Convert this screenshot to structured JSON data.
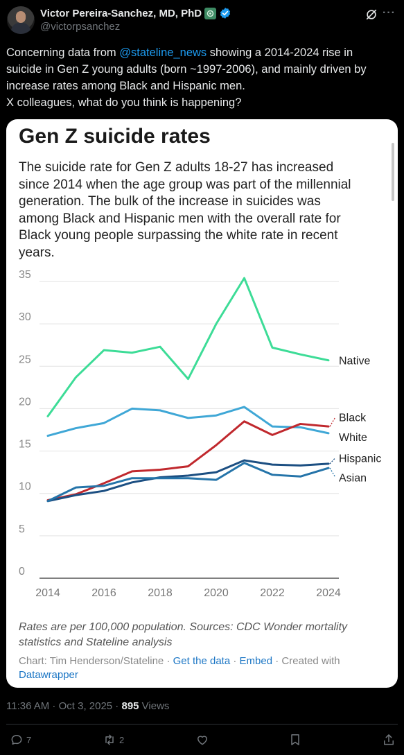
{
  "author": {
    "display_name": "Victor Pereira-Sanchez, MD, PhD",
    "handle": "@victorpsanchez"
  },
  "tweet": {
    "line1_pre": "Concerning data from ",
    "mention": "@stateline_news",
    "line1_post": " showing a 2014-2024 rise in",
    "line2": "suicide in Gen Z young adults (born ~1997-2006), and mainly driven by",
    "line3": "increase rates among Black and Hispanic men.",
    "line4": "X colleagues, what do you think is happening?"
  },
  "card": {
    "title": "Gen Z suicide rates",
    "subtitle_lines": [
      "The suicide rate for Gen Z adults 18-27 has increased",
      "since 2014 when the age group was part of the millennial",
      "generation. The bulk of the increase in suicides was",
      "among Black and Hispanic men with the overall rate for",
      "Black young people surpassing the white rate in recent",
      "years."
    ],
    "footnote_lines": [
      "Rates are per 100,000 population. Sources: CDC Wonder mortality",
      "statistics and Stateline analysis"
    ],
    "credit_prefix": "Chart: Tim Henderson/Stateline",
    "link_get_data": "Get the data",
    "link_embed": "Embed",
    "credit_created": "Created with",
    "link_datawrapper": "Datawrapper"
  },
  "chart_data": {
    "type": "line",
    "title": "Gen Z suicide rates",
    "x": [
      2014,
      2015,
      2016,
      2017,
      2018,
      2019,
      2020,
      2021,
      2022,
      2023,
      2024
    ],
    "x_ticks": [
      "2014",
      "2016",
      "2018",
      "2020",
      "2022",
      "2024"
    ],
    "y_ticks": [
      "0",
      "5",
      "10",
      "15",
      "20",
      "25",
      "30",
      "35"
    ],
    "ylim": [
      0,
      35
    ],
    "grid": true,
    "series": [
      {
        "name": "Native",
        "color": "#3ddc97",
        "values": [
          19.1,
          23.7,
          26.9,
          26.6,
          27.3,
          23.5,
          30.0,
          35.4,
          27.2,
          26.4,
          25.7
        ]
      },
      {
        "name": "White",
        "color": "#3fa7d6",
        "values": [
          16.8,
          17.7,
          18.3,
          20.0,
          19.8,
          18.9,
          19.2,
          20.2,
          17.9,
          17.8,
          17.1
        ]
      },
      {
        "name": "Black",
        "color": "#c0282d",
        "values": [
          9.2,
          9.9,
          11.2,
          12.6,
          12.8,
          13.2,
          15.7,
          18.5,
          16.9,
          18.2,
          17.9
        ]
      },
      {
        "name": "Hispanic",
        "color": "#1c4f82",
        "values": [
          9.1,
          9.8,
          10.3,
          11.3,
          11.9,
          12.1,
          12.5,
          13.9,
          13.4,
          13.3,
          13.5
        ]
      },
      {
        "name": "Asian",
        "color": "#2574a9",
        "values": [
          9.1,
          10.7,
          10.9,
          11.8,
          11.8,
          11.8,
          11.6,
          13.6,
          12.2,
          12.0,
          13.0
        ]
      }
    ]
  },
  "meta": {
    "timestamp": "11:36 AM · Oct 3, 2025 · ",
    "views_count": "895",
    "views_label": " Views"
  },
  "actions": {
    "replies": "7",
    "reposts": "2"
  }
}
